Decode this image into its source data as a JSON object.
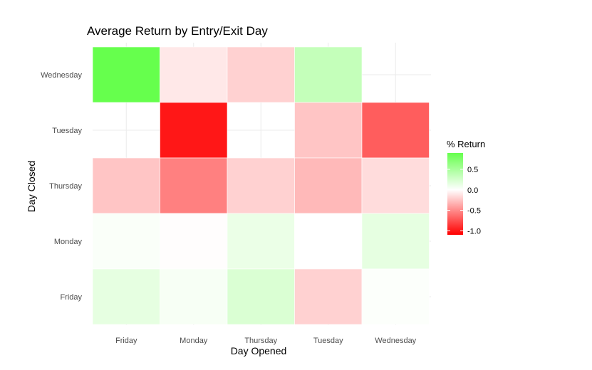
{
  "chart_data": {
    "type": "heatmap",
    "title": "Average Return by Entry/Exit Day",
    "xlabel": "Day Opened",
    "ylabel": "Day Closed",
    "x_categories": [
      "Friday",
      "Monday",
      "Thursday",
      "Tuesday",
      "Wednesday"
    ],
    "y_categories": [
      "Wednesday",
      "Tuesday",
      "Thursday",
      "Monday",
      "Friday"
    ],
    "cells": [
      {
        "x": "Friday",
        "y": "Wednesday",
        "value": 0.9
      },
      {
        "x": "Monday",
        "y": "Wednesday",
        "value": -0.1
      },
      {
        "x": "Thursday",
        "y": "Wednesday",
        "value": -0.2
      },
      {
        "x": "Tuesday",
        "y": "Wednesday",
        "value": 0.35
      },
      {
        "x": "Monday",
        "y": "Tuesday",
        "value": -1.0
      },
      {
        "x": "Tuesday",
        "y": "Tuesday",
        "value": -0.25
      },
      {
        "x": "Wednesday",
        "y": "Tuesday",
        "value": -0.7
      },
      {
        "x": "Friday",
        "y": "Thursday",
        "value": -0.25
      },
      {
        "x": "Monday",
        "y": "Thursday",
        "value": -0.55
      },
      {
        "x": "Thursday",
        "y": "Thursday",
        "value": -0.2
      },
      {
        "x": "Tuesday",
        "y": "Thursday",
        "value": -0.3
      },
      {
        "x": "Wednesday",
        "y": "Thursday",
        "value": -0.15
      },
      {
        "x": "Friday",
        "y": "Monday",
        "value": 0.03
      },
      {
        "x": "Monday",
        "y": "Monday",
        "value": -0.01
      },
      {
        "x": "Thursday",
        "y": "Monday",
        "value": 0.12
      },
      {
        "x": "Tuesday",
        "y": "Monday",
        "value": 0.0
      },
      {
        "x": "Wednesday",
        "y": "Monday",
        "value": 0.15
      },
      {
        "x": "Friday",
        "y": "Friday",
        "value": 0.15
      },
      {
        "x": "Monday",
        "y": "Friday",
        "value": 0.05
      },
      {
        "x": "Thursday",
        "y": "Friday",
        "value": 0.22
      },
      {
        "x": "Tuesday",
        "y": "Friday",
        "value": -0.2
      },
      {
        "x": "Wednesday",
        "y": "Friday",
        "value": 0.02
      }
    ],
    "legend": {
      "title": "% Return",
      "position": "right",
      "min": -1.1,
      "max": 0.9,
      "ticks": [
        0.5,
        0.0,
        -0.5,
        -1.0
      ],
      "tick_labels": [
        "0.5",
        "0.0",
        "-0.5",
        "-1.0"
      ],
      "low_color": "#ff0000",
      "mid_color": "#ffffff",
      "high_color": "#66ff4d"
    },
    "grid": true,
    "grid_color": "#ebebeb"
  }
}
